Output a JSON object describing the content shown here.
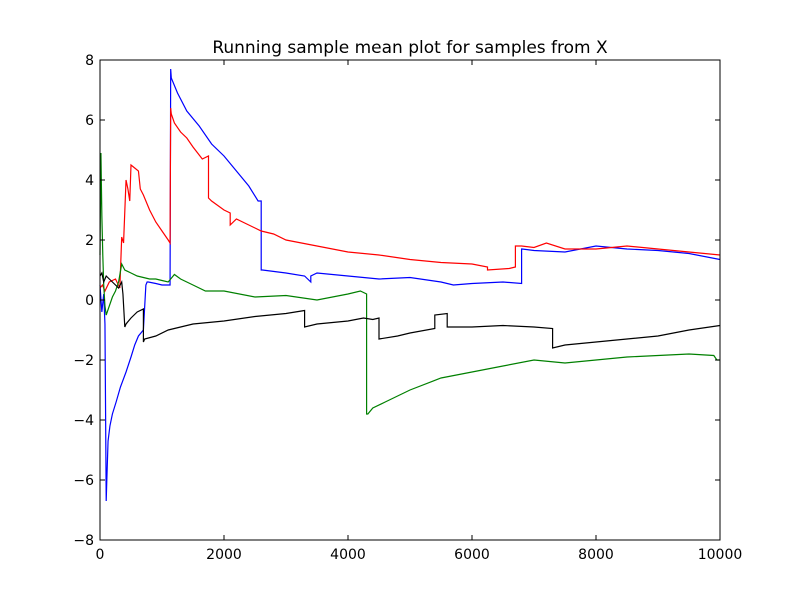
{
  "chart_data": {
    "type": "line",
    "title": "Running sample mean plot for samples from X",
    "xlabel": "",
    "ylabel": "",
    "xlim": [
      0,
      10000
    ],
    "ylim": [
      -8,
      8
    ],
    "xticks": [
      0,
      2000,
      4000,
      6000,
      8000,
      10000
    ],
    "xtick_labels": [
      "0",
      "2000",
      "4000",
      "6000",
      "8000",
      "10000"
    ],
    "yticks": [
      -8,
      -6,
      -4,
      -2,
      0,
      2,
      4,
      6,
      8
    ],
    "ytick_labels": [
      "−8",
      "−6",
      "−4",
      "−2",
      "0",
      "2",
      "4",
      "6",
      "8"
    ],
    "grid": false,
    "legend": "none",
    "series": [
      {
        "color": "#0000ff",
        "x": [
          0,
          30,
          60,
          80,
          100,
          110,
          130,
          160,
          200,
          260,
          330,
          420,
          500,
          560,
          620,
          700,
          740,
          760,
          780,
          900,
          1000,
          1100,
          1130,
          1140,
          1150,
          1250,
          1400,
          1600,
          1800,
          2000,
          2200,
          2400,
          2550,
          2600,
          2600,
          2620,
          3000,
          3300,
          3400,
          3400,
          3500,
          4000,
          4500,
          5000,
          5500,
          5700,
          6000,
          6500,
          6800,
          6800,
          6810,
          7000,
          7500,
          8000,
          8500,
          9000,
          9500,
          10000
        ],
        "y": [
          0.5,
          -0.4,
          0.2,
          -0.8,
          -6.7,
          -6.0,
          -4.7,
          -4.2,
          -3.8,
          -3.4,
          -2.9,
          -2.4,
          -1.9,
          -1.5,
          -1.2,
          -1.0,
          0.5,
          0.6,
          0.6,
          0.55,
          0.5,
          0.5,
          0.5,
          7.7,
          7.4,
          6.9,
          6.3,
          5.8,
          5.2,
          4.8,
          4.3,
          3.8,
          3.3,
          3.3,
          1.0,
          1.0,
          0.9,
          0.8,
          0.6,
          0.8,
          0.9,
          0.8,
          0.7,
          0.75,
          0.6,
          0.5,
          0.55,
          0.6,
          0.55,
          1.7,
          1.7,
          1.65,
          1.6,
          1.8,
          1.7,
          1.65,
          1.55,
          1.35
        ]
      },
      {
        "color": "#ff0000",
        "x": [
          0,
          40,
          80,
          150,
          250,
          320,
          350,
          380,
          420,
          450,
          480,
          500,
          560,
          620,
          650,
          700,
          800,
          900,
          1000,
          1100,
          1130,
          1140,
          1150,
          1200,
          1300,
          1400,
          1500,
          1650,
          1750,
          1750,
          1800,
          2000,
          2100,
          2100,
          2200,
          2400,
          2600,
          2800,
          3000,
          3500,
          4000,
          4500,
          5000,
          5500,
          6000,
          6250,
          6250,
          6600,
          6700,
          6700,
          6800,
          7000,
          7200,
          7500,
          8000,
          8500,
          9000,
          9500,
          10000
        ],
        "y": [
          0.4,
          0.5,
          0.3,
          0.6,
          0.7,
          0.4,
          2.1,
          1.9,
          4.0,
          3.7,
          3.3,
          4.5,
          4.4,
          4.3,
          3.7,
          3.5,
          3.0,
          2.6,
          2.3,
          2.0,
          1.9,
          6.4,
          6.2,
          5.9,
          5.6,
          5.4,
          5.1,
          4.7,
          4.8,
          3.4,
          3.3,
          3.0,
          2.9,
          2.5,
          2.7,
          2.5,
          2.3,
          2.2,
          2.0,
          1.8,
          1.6,
          1.5,
          1.35,
          1.25,
          1.2,
          1.1,
          1.0,
          1.05,
          1.1,
          1.8,
          1.8,
          1.75,
          1.9,
          1.7,
          1.7,
          1.8,
          1.7,
          1.6,
          1.5
        ]
      },
      {
        "color": "#008000",
        "x": [
          0,
          15,
          30,
          45,
          60,
          80,
          100,
          150,
          200,
          250,
          300,
          350,
          400,
          500,
          600,
          700,
          800,
          900,
          1000,
          1100,
          1200,
          1300,
          1500,
          1700,
          2000,
          2500,
          3000,
          3500,
          4000,
          4200,
          4300,
          4300,
          4320,
          4400,
          4600,
          5000,
          5500,
          6000,
          6500,
          7000,
          7500,
          8000,
          8500,
          9000,
          9500,
          9900,
          9950,
          10000
        ],
        "y": [
          1.5,
          4.9,
          2.8,
          1.5,
          0.5,
          -0.2,
          -0.5,
          -0.2,
          0.1,
          0.3,
          0.6,
          1.2,
          1.0,
          0.9,
          0.8,
          0.75,
          0.7,
          0.7,
          0.65,
          0.6,
          0.85,
          0.7,
          0.5,
          0.3,
          0.3,
          0.1,
          0.15,
          0.0,
          0.2,
          0.3,
          0.2,
          -3.8,
          -3.8,
          -3.6,
          -3.4,
          -3.0,
          -2.6,
          -2.4,
          -2.2,
          -2.0,
          -2.1,
          -2.0,
          -1.9,
          -1.85,
          -1.8,
          -1.85,
          -2.0,
          -2.0
        ]
      },
      {
        "color": "#000000",
        "x": [
          0,
          30,
          60,
          100,
          150,
          200,
          250,
          300,
          350,
          370,
          400,
          420,
          500,
          600,
          700,
          700,
          720,
          900,
          1100,
          1500,
          2000,
          2500,
          3000,
          3300,
          3300,
          3500,
          4000,
          4250,
          4400,
          4500,
          4500,
          4800,
          5000,
          5400,
          5400,
          5600,
          5600,
          6000,
          6500,
          7000,
          7300,
          7300,
          7500,
          8000,
          8500,
          9000,
          9500,
          10000
        ],
        "y": [
          0.8,
          0.9,
          0.6,
          0.8,
          0.7,
          0.6,
          0.5,
          0.4,
          0.6,
          0.2,
          -0.9,
          -0.8,
          -0.6,
          -0.4,
          -0.3,
          -1.4,
          -1.3,
          -1.2,
          -1.0,
          -0.8,
          -0.7,
          -0.55,
          -0.45,
          -0.35,
          -0.9,
          -0.8,
          -0.7,
          -0.6,
          -0.65,
          -0.6,
          -1.3,
          -1.2,
          -1.1,
          -0.95,
          -0.5,
          -0.45,
          -0.9,
          -0.9,
          -0.85,
          -0.9,
          -0.95,
          -1.6,
          -1.5,
          -1.4,
          -1.3,
          -1.2,
          -1.0,
          -0.85
        ]
      }
    ]
  }
}
